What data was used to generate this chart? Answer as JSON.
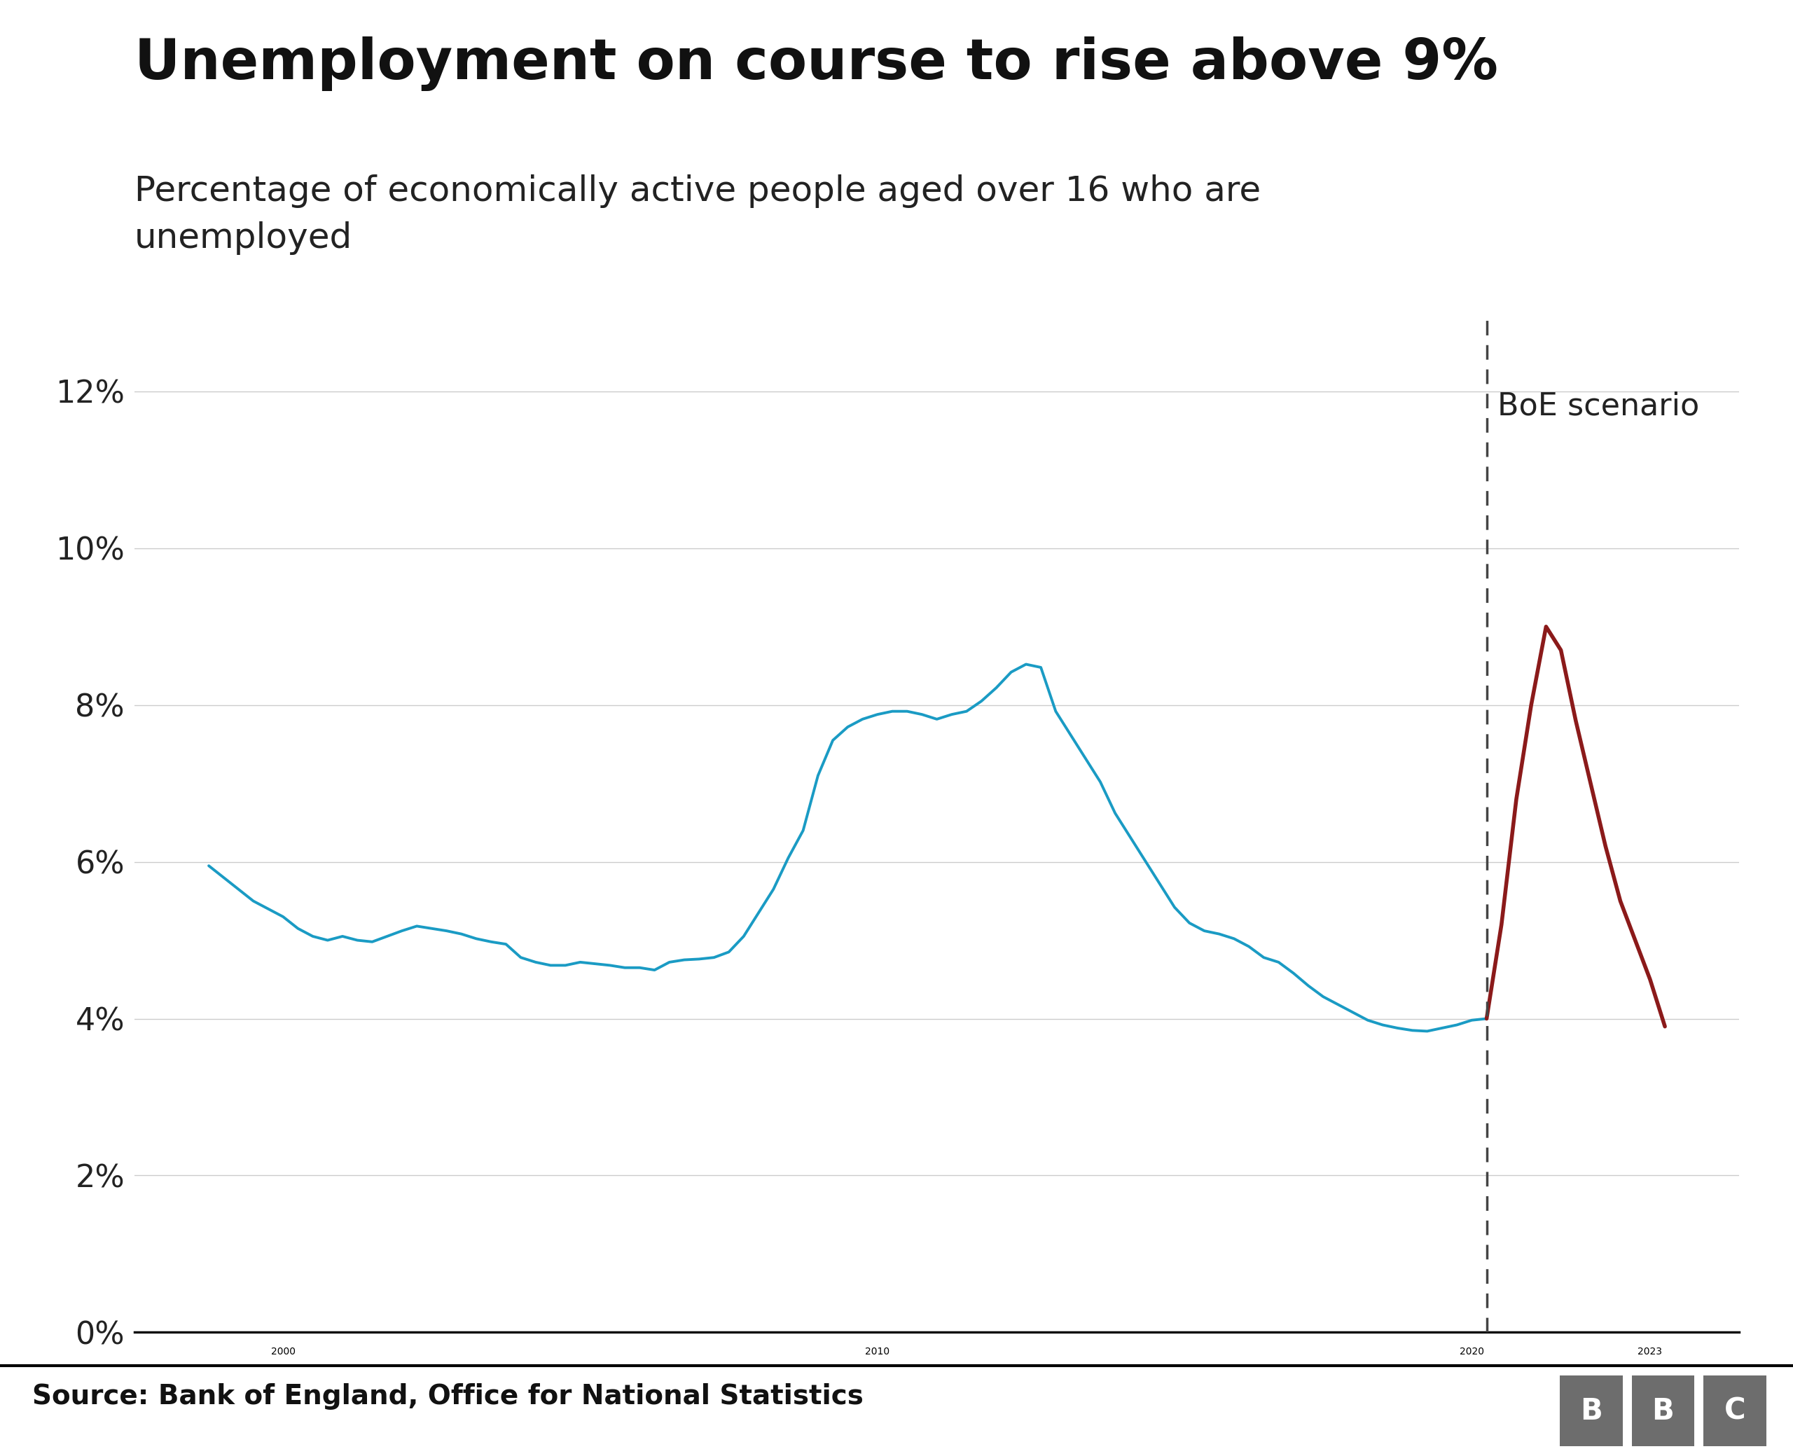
{
  "title": "Unemployment on course to rise above 9%",
  "subtitle": "Percentage of economically active people aged over 16 who are\nunemployed",
  "source": "Source: Bank of England, Office for National Statistics",
  "boe_label": "BoE scenario",
  "line_color": "#1a9bc4",
  "scenario_color": "#8b1a1a",
  "dashed_line_color": "#444444",
  "background_color": "#ffffff",
  "title_fontsize": 58,
  "subtitle_fontsize": 36,
  "source_fontsize": 28,
  "axis_fontsize": 32,
  "annotation_fontsize": 32,
  "ylim": [
    0,
    13
  ],
  "yticks": [
    0,
    2,
    4,
    6,
    8,
    10,
    12
  ],
  "ytick_labels": [
    "0%",
    "2%",
    "4%",
    "6%",
    "8%",
    "10%",
    "12%"
  ],
  "dashed_x": 2020.25,
  "historical_x": [
    1998.75,
    1999.0,
    1999.25,
    1999.5,
    1999.75,
    2000.0,
    2000.25,
    2000.5,
    2000.75,
    2001.0,
    2001.25,
    2001.5,
    2001.75,
    2002.0,
    2002.25,
    2002.5,
    2002.75,
    2003.0,
    2003.25,
    2003.5,
    2003.75,
    2004.0,
    2004.25,
    2004.5,
    2004.75,
    2005.0,
    2005.25,
    2005.5,
    2005.75,
    2006.0,
    2006.25,
    2006.5,
    2006.75,
    2007.0,
    2007.25,
    2007.5,
    2007.75,
    2008.0,
    2008.25,
    2008.5,
    2008.75,
    2009.0,
    2009.25,
    2009.5,
    2009.75,
    2010.0,
    2010.25,
    2010.5,
    2010.75,
    2011.0,
    2011.25,
    2011.5,
    2011.75,
    2012.0,
    2012.25,
    2012.5,
    2012.75,
    2013.0,
    2013.25,
    2013.5,
    2013.75,
    2014.0,
    2014.25,
    2014.5,
    2014.75,
    2015.0,
    2015.25,
    2015.5,
    2015.75,
    2016.0,
    2016.25,
    2016.5,
    2016.75,
    2017.0,
    2017.25,
    2017.5,
    2017.75,
    2018.0,
    2018.25,
    2018.5,
    2018.75,
    2019.0,
    2019.25,
    2019.5,
    2019.75,
    2020.0,
    2020.25
  ],
  "historical_y": [
    5.95,
    5.8,
    5.65,
    5.5,
    5.4,
    5.3,
    5.15,
    5.05,
    5.0,
    5.05,
    5.0,
    4.98,
    5.05,
    5.12,
    5.18,
    5.15,
    5.12,
    5.08,
    5.02,
    4.98,
    4.95,
    4.78,
    4.72,
    4.68,
    4.68,
    4.72,
    4.7,
    4.68,
    4.65,
    4.65,
    4.62,
    4.72,
    4.75,
    4.76,
    4.78,
    4.85,
    5.05,
    5.35,
    5.65,
    6.05,
    6.4,
    7.1,
    7.55,
    7.72,
    7.82,
    7.88,
    7.92,
    7.92,
    7.88,
    7.82,
    7.88,
    7.92,
    8.05,
    8.22,
    8.42,
    8.52,
    8.48,
    7.92,
    7.62,
    7.32,
    7.02,
    6.62,
    6.32,
    6.02,
    5.72,
    5.42,
    5.22,
    5.12,
    5.08,
    5.02,
    4.92,
    4.78,
    4.72,
    4.58,
    4.42,
    4.28,
    4.18,
    4.08,
    3.98,
    3.92,
    3.88,
    3.85,
    3.84,
    3.88,
    3.92,
    3.98,
    4.0
  ],
  "scenario_x": [
    2020.25,
    2020.5,
    2020.75,
    2021.0,
    2021.25,
    2021.5,
    2021.75,
    2022.0,
    2022.25,
    2022.5,
    2022.75,
    2023.0,
    2023.25
  ],
  "scenario_y": [
    4.0,
    5.2,
    6.8,
    8.0,
    9.0,
    8.7,
    7.8,
    7.0,
    6.2,
    5.5,
    5.0,
    4.5,
    3.9
  ],
  "xticks": [
    2000,
    2010,
    2020,
    2023
  ],
  "xlim_left": 1997.5,
  "xlim_right": 2024.5,
  "grid_color": "#cccccc",
  "footer_line_color": "#000000",
  "bbc_box_color": "#6d6d6d",
  "bbc_text_color": "#ffffff"
}
